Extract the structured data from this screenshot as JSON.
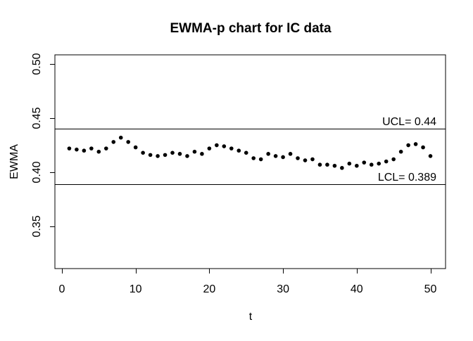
{
  "chart_data": {
    "type": "scatter",
    "title": "EWMA-p chart for IC data",
    "xlabel": "t",
    "ylabel": "EWMA",
    "xlim": [
      -0.95,
      52.05
    ],
    "ylim": [
      0.311,
      0.5085
    ],
    "xticks": [
      0,
      10,
      20,
      30,
      40,
      50
    ],
    "yticks": [
      "0.35",
      "0.40",
      "0.45",
      "0.50"
    ],
    "grid": false,
    "legend": "none",
    "ucl": {
      "label": "UCL= 0.44",
      "value": 0.44
    },
    "lcl": {
      "label": "LCL= 0.389",
      "value": 0.389
    },
    "colors": {
      "foreground": "#000000",
      "background": "#ffffff"
    },
    "series": [
      {
        "name": "EWMA",
        "marker": "filled-circle",
        "x": [
          1,
          2,
          3,
          4,
          5,
          6,
          7,
          8,
          9,
          10,
          11,
          12,
          13,
          14,
          15,
          16,
          17,
          18,
          19,
          20,
          21,
          22,
          23,
          24,
          25,
          26,
          27,
          28,
          29,
          30,
          31,
          32,
          33,
          34,
          35,
          36,
          37,
          38,
          39,
          40,
          41,
          42,
          43,
          44,
          45,
          46,
          47,
          48,
          49,
          50
        ],
        "y": [
          0.422,
          0.421,
          0.42,
          0.422,
          0.419,
          0.422,
          0.428,
          0.432,
          0.428,
          0.423,
          0.418,
          0.416,
          0.415,
          0.416,
          0.418,
          0.417,
          0.415,
          0.419,
          0.417,
          0.422,
          0.425,
          0.424,
          0.422,
          0.42,
          0.418,
          0.413,
          0.412,
          0.417,
          0.415,
          0.414,
          0.417,
          0.413,
          0.411,
          0.412,
          0.407,
          0.407,
          0.406,
          0.404,
          0.408,
          0.406,
          0.409,
          0.407,
          0.408,
          0.41,
          0.412,
          0.419,
          0.425,
          0.426,
          0.423,
          0.415
        ]
      }
    ]
  }
}
